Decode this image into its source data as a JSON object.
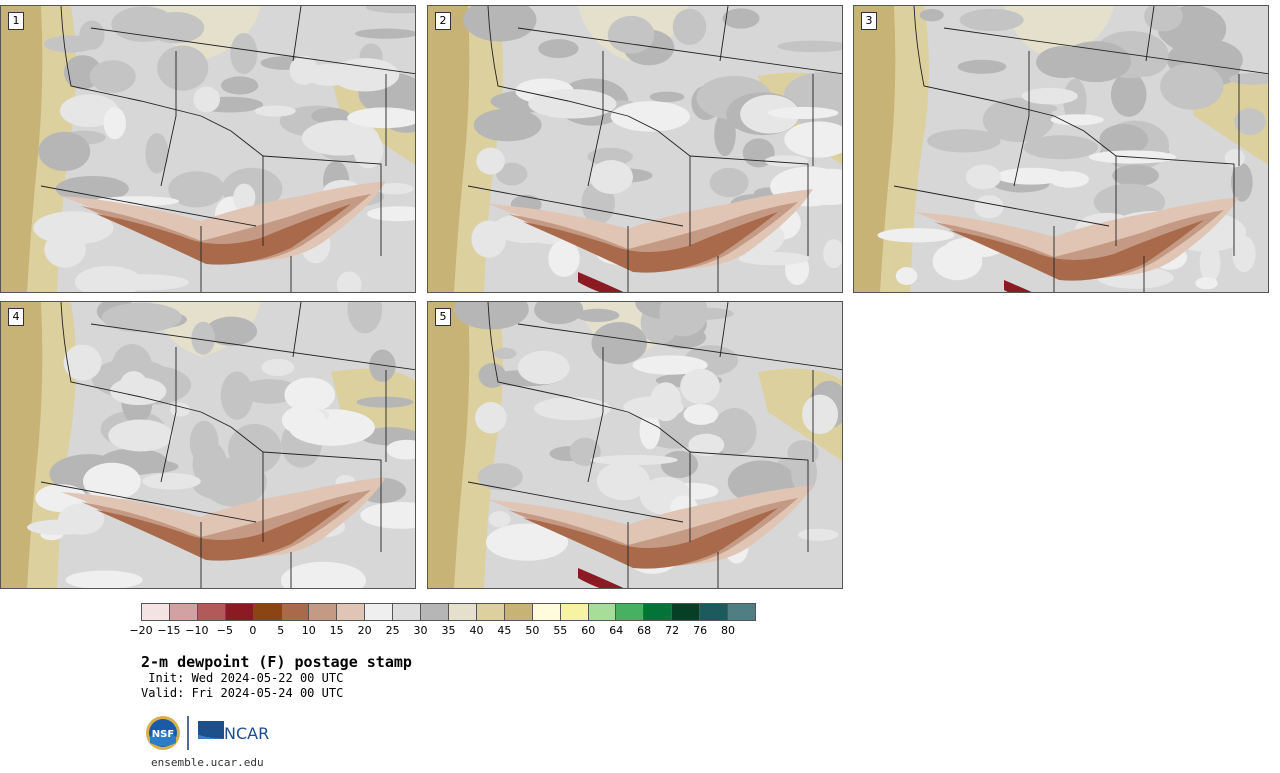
{
  "panels": [
    {
      "label": "1"
    },
    {
      "label": "2"
    },
    {
      "label": "3"
    },
    {
      "label": "4"
    },
    {
      "label": "5"
    }
  ],
  "colorbar": {
    "colors": [
      "#f3e3e3",
      "#d3a1a1",
      "#b25a5a",
      "#8b1a22",
      "#8a4512",
      "#a86a4a",
      "#c49a84",
      "#e0c4b4",
      "#efefef",
      "#dedede",
      "#b6b6b6",
      "#e4e0cc",
      "#ddd09f",
      "#c8b376",
      "#fffbdc",
      "#f6f4a4",
      "#a6dd98",
      "#48b061",
      "#037337",
      "#063f25",
      "#1c5a5e",
      "#4f7f82"
    ],
    "ticks": [
      "−20",
      "−15",
      "−10",
      "−5",
      "0",
      "5",
      "10",
      "15",
      "20",
      "25",
      "30",
      "35",
      "40",
      "45",
      "50",
      "55",
      "60",
      "64",
      "68",
      "72",
      "76",
      "80"
    ]
  },
  "title": "2-m dewpoint (F) postage stamp",
  "init_text": " Init: Wed 2024-05-22 00 UTC",
  "valid_text": "Valid: Fri 2024-05-24 00 UTC",
  "logo": {
    "agency_left": "NSF",
    "agency_right": "NCAR"
  },
  "site": "ensemble.ucar.edu"
}
